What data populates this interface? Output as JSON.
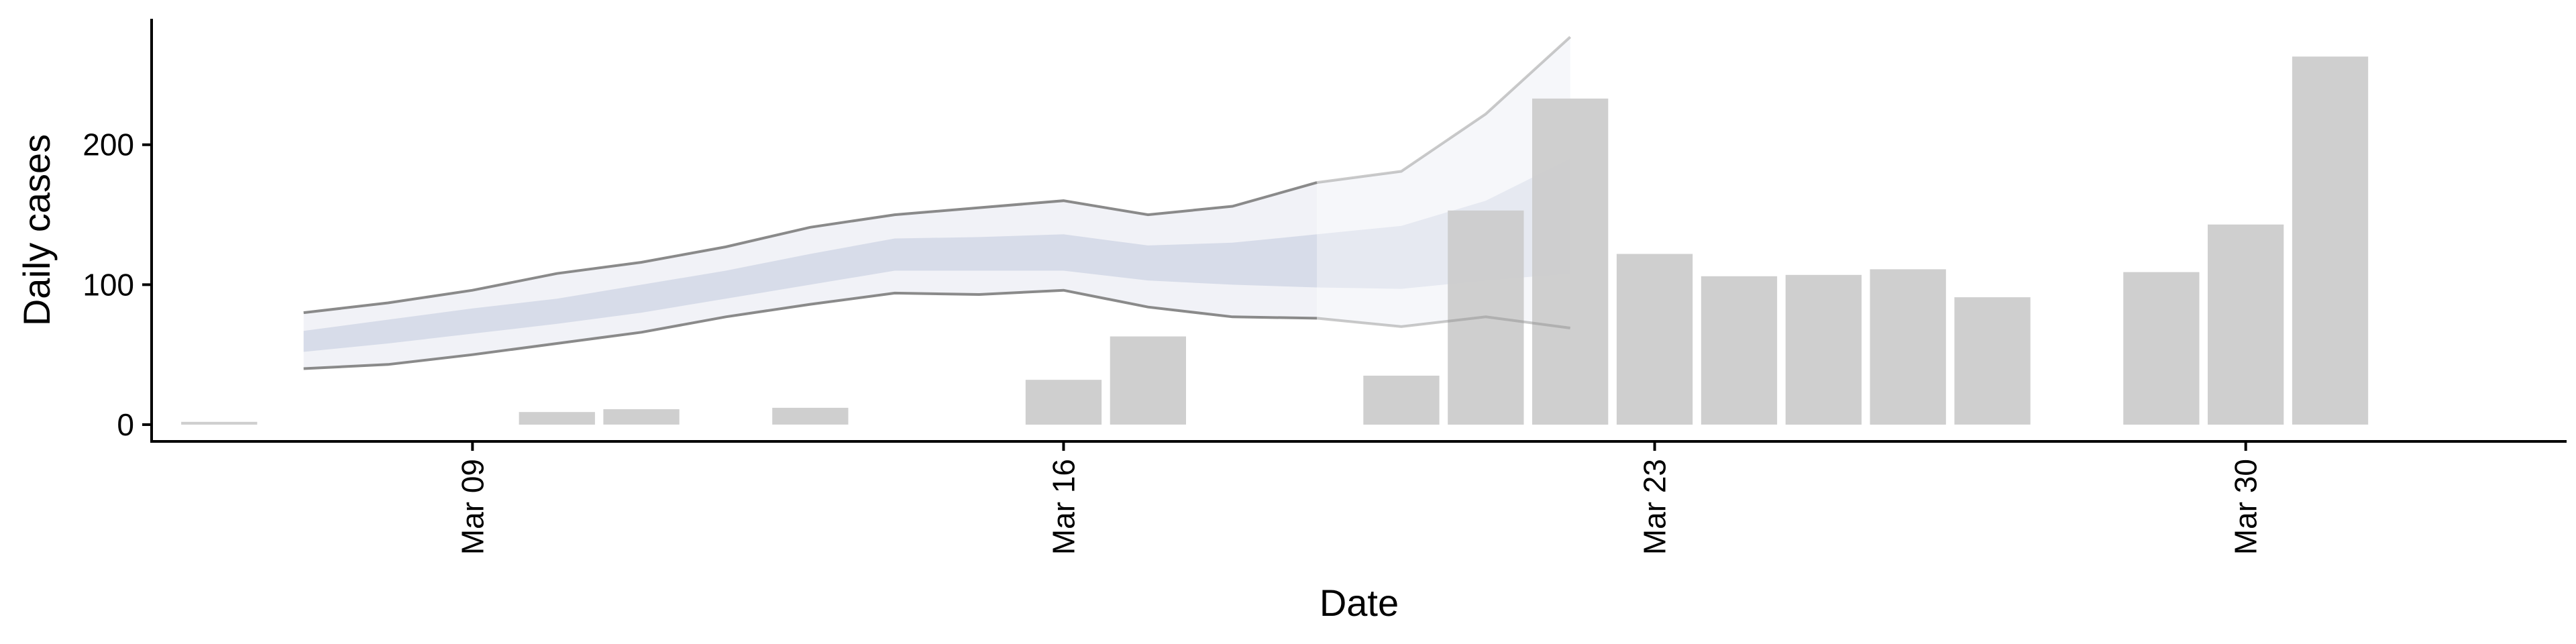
{
  "chart_data": {
    "type": "bar",
    "title": "",
    "xlabel": "Date",
    "ylabel": "Daily cases",
    "x_ticks": [
      {
        "day": 9,
        "label": "Mar 09"
      },
      {
        "day": 16,
        "label": "Mar 16"
      },
      {
        "day": 23,
        "label": "Mar 23"
      },
      {
        "day": 30,
        "label": "Mar 30"
      }
    ],
    "y_ticks": [
      0,
      100,
      200
    ],
    "xlim": [
      5.2,
      33.8
    ],
    "ylim": [
      -12,
      290
    ],
    "bars": {
      "name": "Daily cases",
      "color": "#cccccc",
      "days": [
        6,
        10,
        11,
        13,
        16,
        17,
        20,
        21,
        22,
        23,
        24,
        25,
        26,
        27,
        29,
        30,
        31
      ],
      "values": [
        2,
        9,
        11,
        12,
        32,
        63,
        35,
        153,
        233,
        122,
        106,
        107,
        111,
        91,
        109,
        143,
        263
      ]
    },
    "nowcast": {
      "days": [
        7,
        8,
        9,
        10,
        11,
        12,
        13,
        14,
        15,
        16,
        17,
        18,
        19,
        20,
        21,
        22
      ],
      "lower_90": [
        40,
        43,
        50,
        58,
        66,
        77,
        86,
        94,
        93,
        96,
        84,
        77,
        76,
        70,
        77,
        69
      ],
      "upper_90": [
        80,
        87,
        96,
        108,
        116,
        127,
        141,
        150,
        155,
        160,
        150,
        156,
        173,
        181,
        222,
        277
      ],
      "lower_50": [
        52,
        58,
        65,
        72,
        80,
        90,
        100,
        110,
        110,
        110,
        103,
        100,
        98,
        97,
        103,
        108
      ],
      "upper_50": [
        67,
        75,
        83,
        90,
        100,
        110,
        122,
        133,
        134,
        136,
        128,
        130,
        136,
        142,
        160,
        190
      ],
      "estimate_type_change_day": 19,
      "band_color_90": "#eceef4",
      "band_color_50": "#d2d8e6",
      "line_color": "#8a8a8a"
    }
  }
}
